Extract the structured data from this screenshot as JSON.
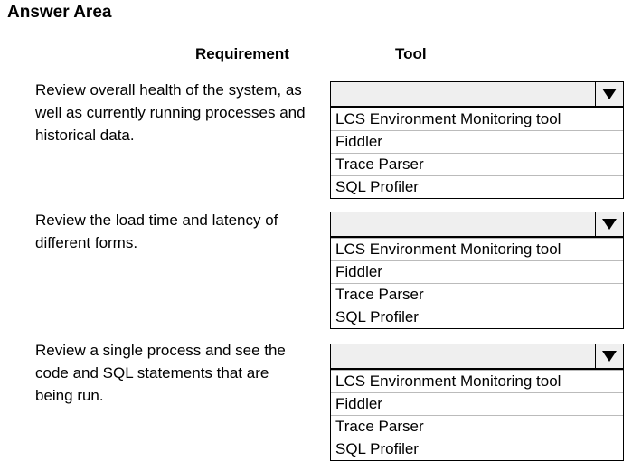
{
  "title": "Answer Area",
  "headers": {
    "requirement": "Requirement",
    "tool": "Tool"
  },
  "rows": [
    {
      "requirement": "Review overall health of the system, as well as currently running processes and historical data.",
      "selected": "",
      "options": [
        "LCS Environment Monitoring tool",
        "Fiddler",
        "Trace Parser",
        "SQL Profiler"
      ]
    },
    {
      "requirement": "Review the load time and latency of different forms.",
      "selected": "",
      "options": [
        "LCS Environment Monitoring tool",
        "Fiddler",
        "Trace Parser",
        "SQL Profiler"
      ]
    },
    {
      "requirement": "Review a single process and see the code and SQL statements that are being run.",
      "selected": "",
      "options": [
        "LCS Environment Monitoring tool",
        "Fiddler",
        "Trace Parser",
        "SQL Profiler"
      ]
    }
  ]
}
